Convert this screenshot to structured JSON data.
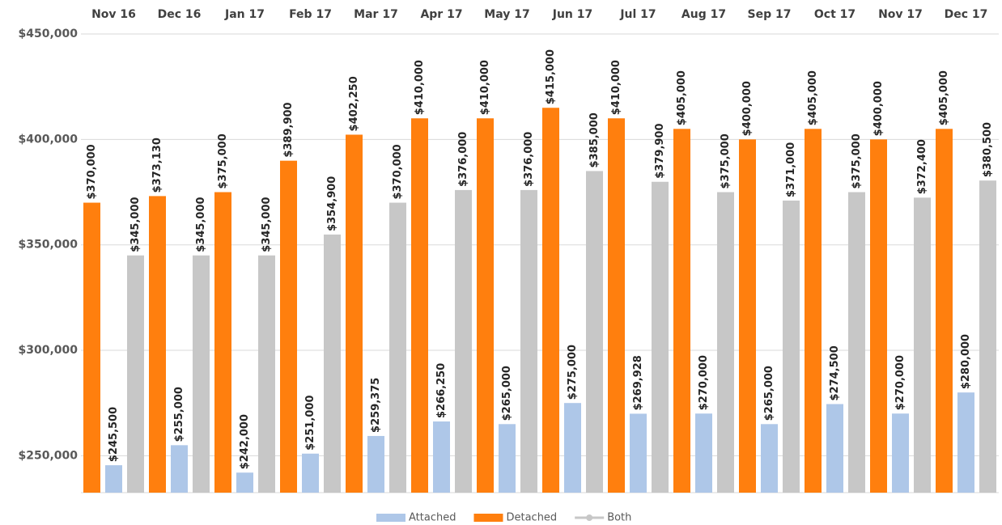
{
  "chart_data": {
    "type": "bar",
    "categories": [
      "Nov 16",
      "Dec 16",
      "Jan 17",
      "Feb 17",
      "Mar 17",
      "Apr 17",
      "May 17",
      "Jun 17",
      "Jul 17",
      "Aug 17",
      "Sep 17",
      "Oct 17",
      "Nov 17",
      "Dec 17"
    ],
    "series": [
      {
        "name": "Detached",
        "color": "#ff7f0e",
        "values": [
          370000,
          373130,
          375000,
          389900,
          402250,
          410000,
          410000,
          415000,
          410000,
          405000,
          400000,
          405000,
          400000,
          405000
        ],
        "value_labels": [
          "$370,000",
          "$373,130",
          "$375,000",
          "$389,900",
          "$402,250",
          "$410,000",
          "$410,000",
          "$415,000",
          "$410,000",
          "$405,000",
          "$400,000",
          "$405,000",
          "$400,000",
          "$405,000"
        ]
      },
      {
        "name": "Attached",
        "color": "#aec7e8",
        "values": [
          245500,
          255000,
          242000,
          251000,
          259375,
          266250,
          265000,
          275000,
          269928,
          270000,
          265000,
          274500,
          270000,
          280000
        ],
        "value_labels": [
          "$245,500",
          "$255,000",
          "$242,000",
          "$251,000",
          "$259,375",
          "$266,250",
          "$265,000",
          "$275,000",
          "$269,928",
          "$270,000",
          "$265,000",
          "$274,500",
          "$270,000",
          "$280,000"
        ]
      },
      {
        "name": "Both",
        "color": "#c7c7c7",
        "legend_marker": "line",
        "values": [
          345000,
          345000,
          345000,
          354900,
          370000,
          376000,
          376000,
          385000,
          379900,
          375000,
          371000,
          375000,
          372400,
          380500
        ],
        "value_labels": [
          "$345,000",
          "$345,000",
          "$345,000",
          "$354,900",
          "$370,000",
          "$376,000",
          "$376,000",
          "$385,000",
          "$379,900",
          "$375,000",
          "$371,000",
          "$375,000",
          "$372,400",
          "$380,500"
        ]
      }
    ],
    "legend_order": [
      1,
      0,
      2
    ],
    "ylim": [
      232500,
      450000
    ],
    "yticks": [
      {
        "value": 250000,
        "label": "$250,000"
      },
      {
        "value": 300000,
        "label": "$300,000"
      },
      {
        "value": 350000,
        "label": "$350,000"
      },
      {
        "value": 400000,
        "label": "$400,000"
      },
      {
        "value": 450000,
        "label": "$450,000"
      }
    ],
    "grid": true,
    "legend": "bottom"
  }
}
